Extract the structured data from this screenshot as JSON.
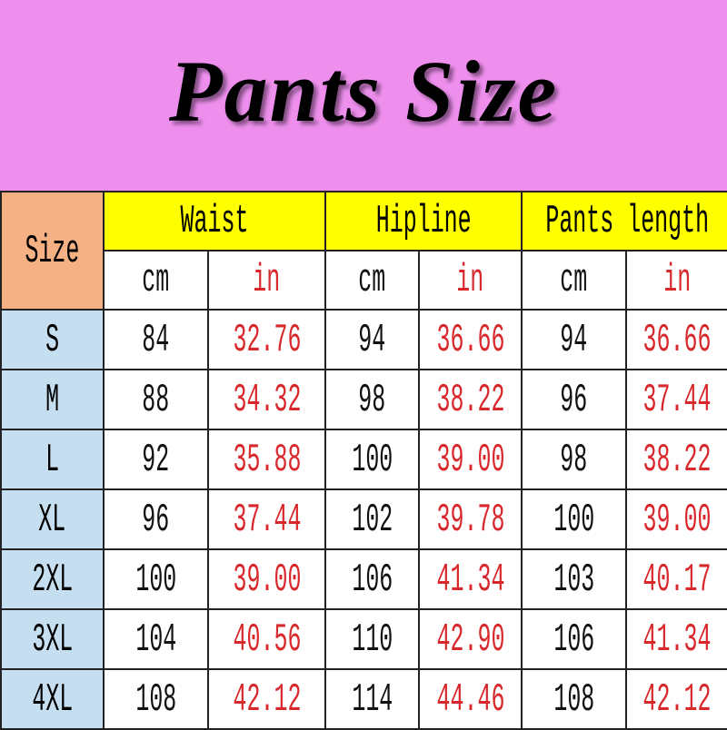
{
  "title": "Pants Size",
  "headers": {
    "size": "Size",
    "groups": [
      "Waist",
      "Hipline",
      "Pants length"
    ],
    "units": [
      "cm",
      "in",
      "cm",
      "in",
      "cm",
      "in"
    ]
  },
  "colors": {
    "header_bg": "#ee8fee",
    "group_header": "#ffff00",
    "size_header": "#f5b183",
    "size_col": "#c5dff0",
    "inch_text": "#d8282c"
  },
  "rows": [
    {
      "size": "S",
      "values": [
        "84",
        "32.76",
        "94",
        "36.66",
        "94",
        "36.66"
      ]
    },
    {
      "size": "M",
      "values": [
        "88",
        "34.32",
        "98",
        "38.22",
        "96",
        "37.44"
      ]
    },
    {
      "size": "L",
      "values": [
        "92",
        "35.88",
        "100",
        "39.00",
        "98",
        "38.22"
      ]
    },
    {
      "size": "XL",
      "values": [
        "96",
        "37.44",
        "102",
        "39.78",
        "100",
        "39.00"
      ]
    },
    {
      "size": "2XL",
      "values": [
        "100",
        "39.00",
        "106",
        "41.34",
        "103",
        "40.17"
      ]
    },
    {
      "size": "3XL",
      "values": [
        "104",
        "40.56",
        "110",
        "42.90",
        "106",
        "41.34"
      ]
    },
    {
      "size": "4XL",
      "values": [
        "108",
        "42.12",
        "114",
        "44.46",
        "108",
        "42.12"
      ]
    }
  ]
}
